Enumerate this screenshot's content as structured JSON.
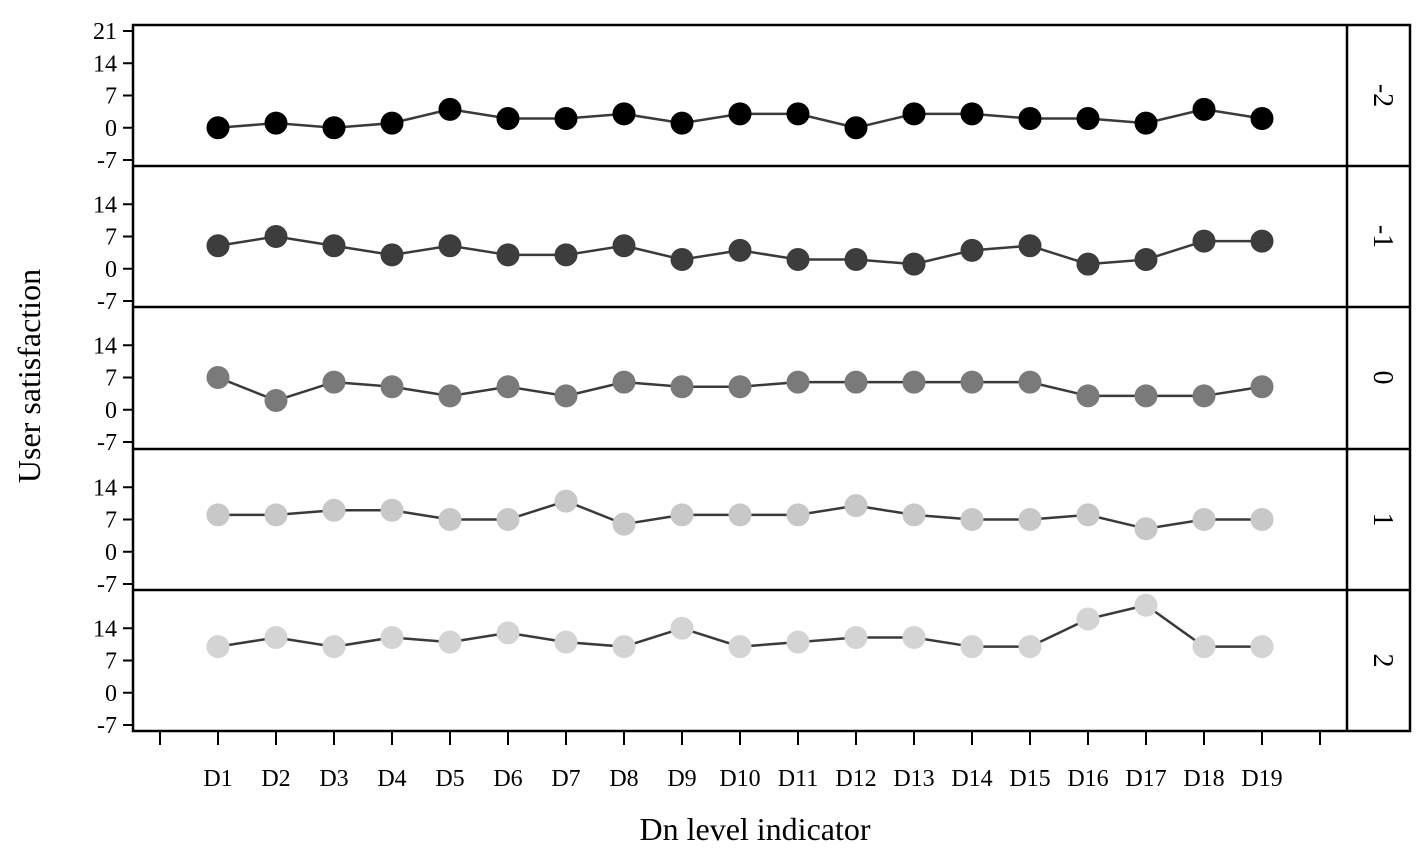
{
  "chart_data": {
    "type": "line",
    "title": "",
    "xlabel": "Dn level indicator",
    "ylabel": "User satisfaction",
    "categories": [
      "D1",
      "D2",
      "D3",
      "D4",
      "D5",
      "D6",
      "D7",
      "D8",
      "D9",
      "D10",
      "D11",
      "D12",
      "D13",
      "D14",
      "D15",
      "D16",
      "D17",
      "D18",
      "D19"
    ],
    "yticks": [
      -7,
      0,
      7,
      14,
      21
    ],
    "ylim": [
      -7,
      21
    ],
    "grid": false,
    "legend": "none",
    "panels": [
      {
        "label": "-2",
        "color": "#000000",
        "values": [
          0,
          1,
          0,
          1,
          4,
          2,
          2,
          3,
          1,
          3,
          3,
          0,
          3,
          3,
          2,
          2,
          1,
          4,
          2
        ]
      },
      {
        "label": "-1",
        "color": "#3d3d3d",
        "values": [
          5,
          7,
          5,
          3,
          5,
          3,
          3,
          5,
          2,
          4,
          2,
          2,
          1,
          4,
          5,
          1,
          2,
          6,
          6
        ]
      },
      {
        "label": "0",
        "color": "#7a7a7a",
        "values": [
          7,
          2,
          6,
          5,
          3,
          5,
          3,
          6,
          5,
          5,
          6,
          6,
          6,
          6,
          6,
          3,
          3,
          3,
          5
        ]
      },
      {
        "label": "1",
        "color": "#c8c8c8",
        "values": [
          8,
          8,
          9,
          9,
          7,
          7,
          11,
          6,
          8,
          8,
          8,
          10,
          8,
          7,
          7,
          8,
          5,
          7,
          7
        ]
      },
      {
        "label": "2",
        "color": "#d4d4d4",
        "values": [
          10,
          12,
          10,
          12,
          11,
          13,
          11,
          10,
          14,
          10,
          11,
          12,
          12,
          10,
          10,
          16,
          19,
          10,
          10
        ]
      }
    ]
  }
}
